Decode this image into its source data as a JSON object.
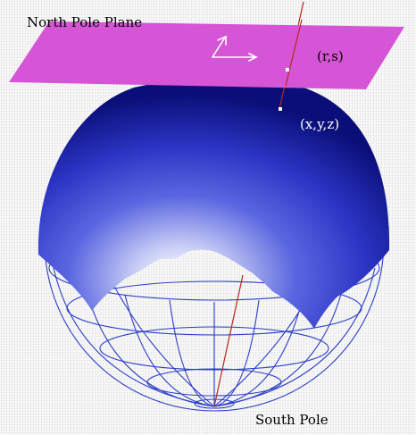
{
  "labels": {
    "plane": "North Pole Plane",
    "planar_point": "(r,s)",
    "sphere_point": "(x,y,z)",
    "south_pole": "South Pole"
  },
  "colors": {
    "plane": "#d655d6",
    "sphere_dark": "#0b0f7a",
    "sphere_light": "#f2f4ff",
    "wireframe": "#2c3ec7",
    "projection_line": "#b3261e",
    "point": "#ffffff"
  },
  "icons": [
    "axis-arrows-icon"
  ]
}
